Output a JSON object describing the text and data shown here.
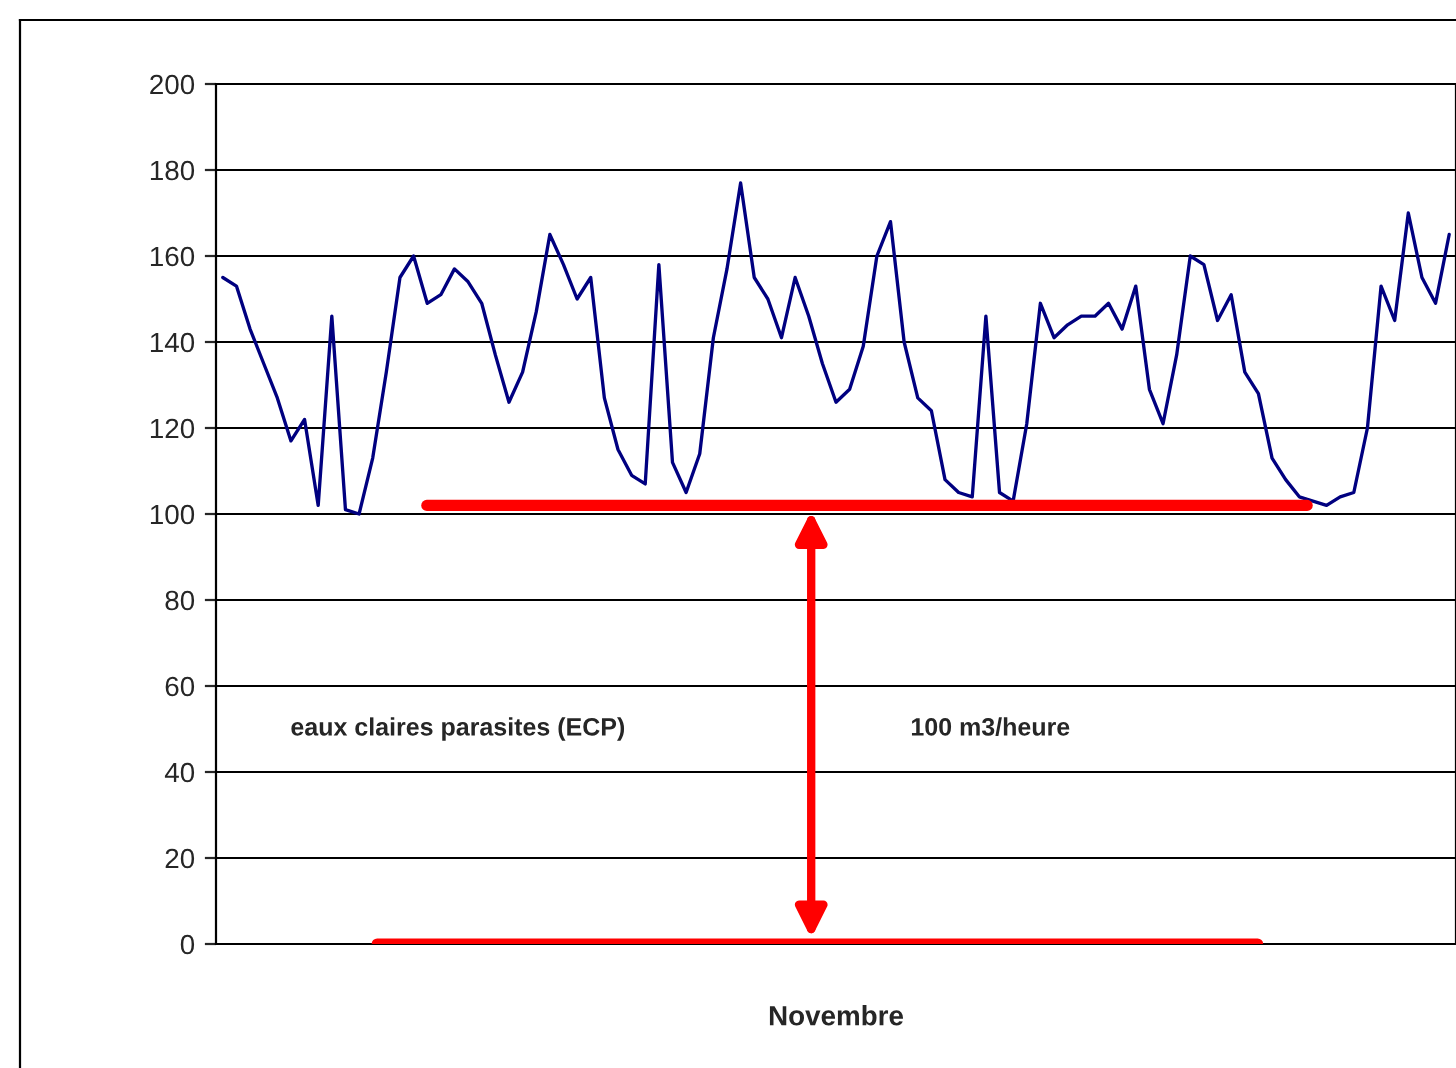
{
  "chart_data": {
    "type": "line",
    "xlabel": "Novembre",
    "categories": [
      null,
      null,
      null,
      null,
      null,
      null,
      null,
      null,
      null,
      null,
      null,
      null,
      null,
      null,
      null,
      null,
      null,
      null,
      null,
      null,
      null,
      null,
      null,
      null,
      null,
      null,
      null,
      null,
      null,
      null,
      null,
      null,
      null,
      null,
      null,
      null,
      null,
      null,
      null,
      null,
      null,
      null,
      null,
      null,
      null,
      null,
      null,
      null,
      null,
      null,
      null,
      null,
      null,
      null,
      null,
      null,
      null,
      null,
      null,
      null,
      null,
      null,
      null,
      null,
      null,
      null,
      null,
      null,
      null,
      null,
      null,
      null,
      null,
      null,
      null,
      null,
      null,
      null,
      null,
      null,
      null,
      null,
      null,
      null,
      null,
      null,
      null,
      null,
      null,
      null,
      null
    ],
    "series": [
      {
        "color": "#000080",
        "values": [
          155,
          153,
          143,
          135,
          127,
          117,
          122,
          102,
          146,
          101,
          100,
          113,
          133,
          155,
          160,
          149,
          151,
          157,
          154,
          149,
          137,
          126,
          133,
          147,
          165,
          158,
          150,
          155,
          127,
          115,
          109,
          107,
          158,
          112,
          105,
          114,
          141,
          157,
          177,
          155,
          150,
          141,
          155,
          146,
          135,
          126,
          129,
          139,
          160,
          168,
          140,
          127,
          124,
          108,
          105,
          104,
          146,
          105,
          103,
          121,
          149,
          141,
          144,
          146,
          146,
          149,
          143,
          153,
          129,
          121,
          137,
          160,
          158,
          145,
          151,
          133,
          128,
          113,
          108,
          104,
          103,
          102,
          104,
          105,
          120,
          153,
          145,
          170,
          155,
          149,
          165
        ]
      }
    ],
    "ylim": [
      0,
      200
    ],
    "yticks": [
      0,
      20,
      40,
      60,
      80,
      100,
      120,
      140,
      160,
      180,
      200
    ],
    "grid": "y",
    "tick_labels": "y",
    "legend": false,
    "ref_lines": [
      {
        "axis": "y",
        "value": 102,
        "color": "#ff0000"
      },
      {
        "axis": "y",
        "value": 0,
        "color": "#ff0000"
      }
    ],
    "annotations": [
      "eaux claires parasites (ECP)",
      "100 m3/heure"
    ]
  }
}
